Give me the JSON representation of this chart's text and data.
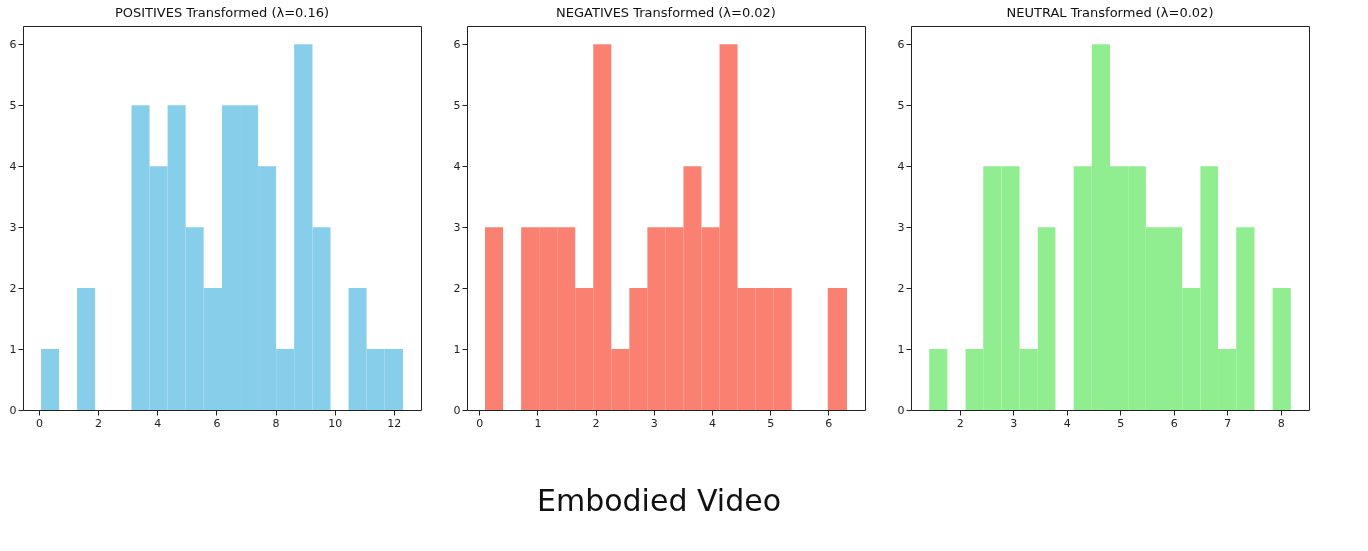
{
  "chart_data": [
    {
      "type": "histogram",
      "title": "POSITIVES Transformed (λ=0.16)",
      "bins": [
        0.07,
        0.68,
        1.29,
        1.9,
        3.13,
        3.74,
        4.35,
        4.96,
        5.57,
        6.19,
        6.8,
        7.41,
        8.02,
        8.63,
        9.25,
        9.86,
        10.47,
        11.08,
        11.69,
        12.31
      ],
      "values": [
        1,
        0,
        2,
        0,
        5,
        4,
        5,
        3,
        2,
        5,
        5,
        4,
        1,
        6,
        3,
        0,
        2,
        1,
        1
      ],
      "color": "#87ceeb",
      "xlim": [
        -0.54,
        12.92
      ],
      "xticks": [
        0,
        2,
        4,
        6,
        8,
        10,
        12
      ],
      "ylim": [
        0,
        6.3
      ],
      "yticks": [
        0,
        1,
        2,
        3,
        4,
        5,
        6
      ],
      "grid": false
    },
    {
      "type": "histogram",
      "title": "NEGATIVES Transformed (λ=0.02)",
      "bins": [
        0.1,
        0.41,
        0.72,
        1.03,
        1.34,
        1.65,
        1.96,
        2.27,
        2.58,
        2.89,
        3.2,
        3.51,
        3.82,
        4.13,
        4.44,
        4.75,
        5.06,
        5.37,
        5.99,
        6.32
      ],
      "values": [
        3,
        0,
        3,
        3,
        3,
        2,
        6,
        1,
        2,
        3,
        3,
        4,
        3,
        6,
        2,
        2,
        2,
        0,
        2
      ],
      "color": "#fa8072",
      "xlim": [
        -0.21,
        6.63
      ],
      "xticks": [
        0,
        1,
        2,
        3,
        4,
        5,
        6
      ],
      "ylim": [
        0,
        6.3
      ],
      "yticks": [
        0,
        1,
        2,
        3,
        4,
        5,
        6
      ],
      "grid": false,
      "annotations": [
        "Embodied Video"
      ]
    },
    {
      "type": "histogram",
      "title": "NEUTRAL Transformed (λ=0.02)",
      "bins": [
        1.43,
        1.77,
        2.11,
        2.44,
        2.78,
        3.12,
        3.46,
        3.79,
        4.13,
        4.47,
        4.81,
        5.15,
        5.48,
        5.82,
        6.16,
        6.5,
        6.83,
        7.17,
        7.51,
        7.85,
        8.19
      ],
      "values": [
        1,
        0,
        1,
        4,
        4,
        1,
        3,
        0,
        4,
        6,
        4,
        4,
        3,
        3,
        2,
        4,
        1,
        3,
        0,
        2
      ],
      "color": "#90ee90",
      "xlim": [
        1.09,
        8.53
      ],
      "xticks": [
        2,
        3,
        4,
        5,
        6,
        7,
        8
      ],
      "ylim": [
        0,
        6.3
      ],
      "yticks": [
        0,
        1,
        2,
        3,
        4,
        5,
        6
      ],
      "grid": false
    }
  ]
}
